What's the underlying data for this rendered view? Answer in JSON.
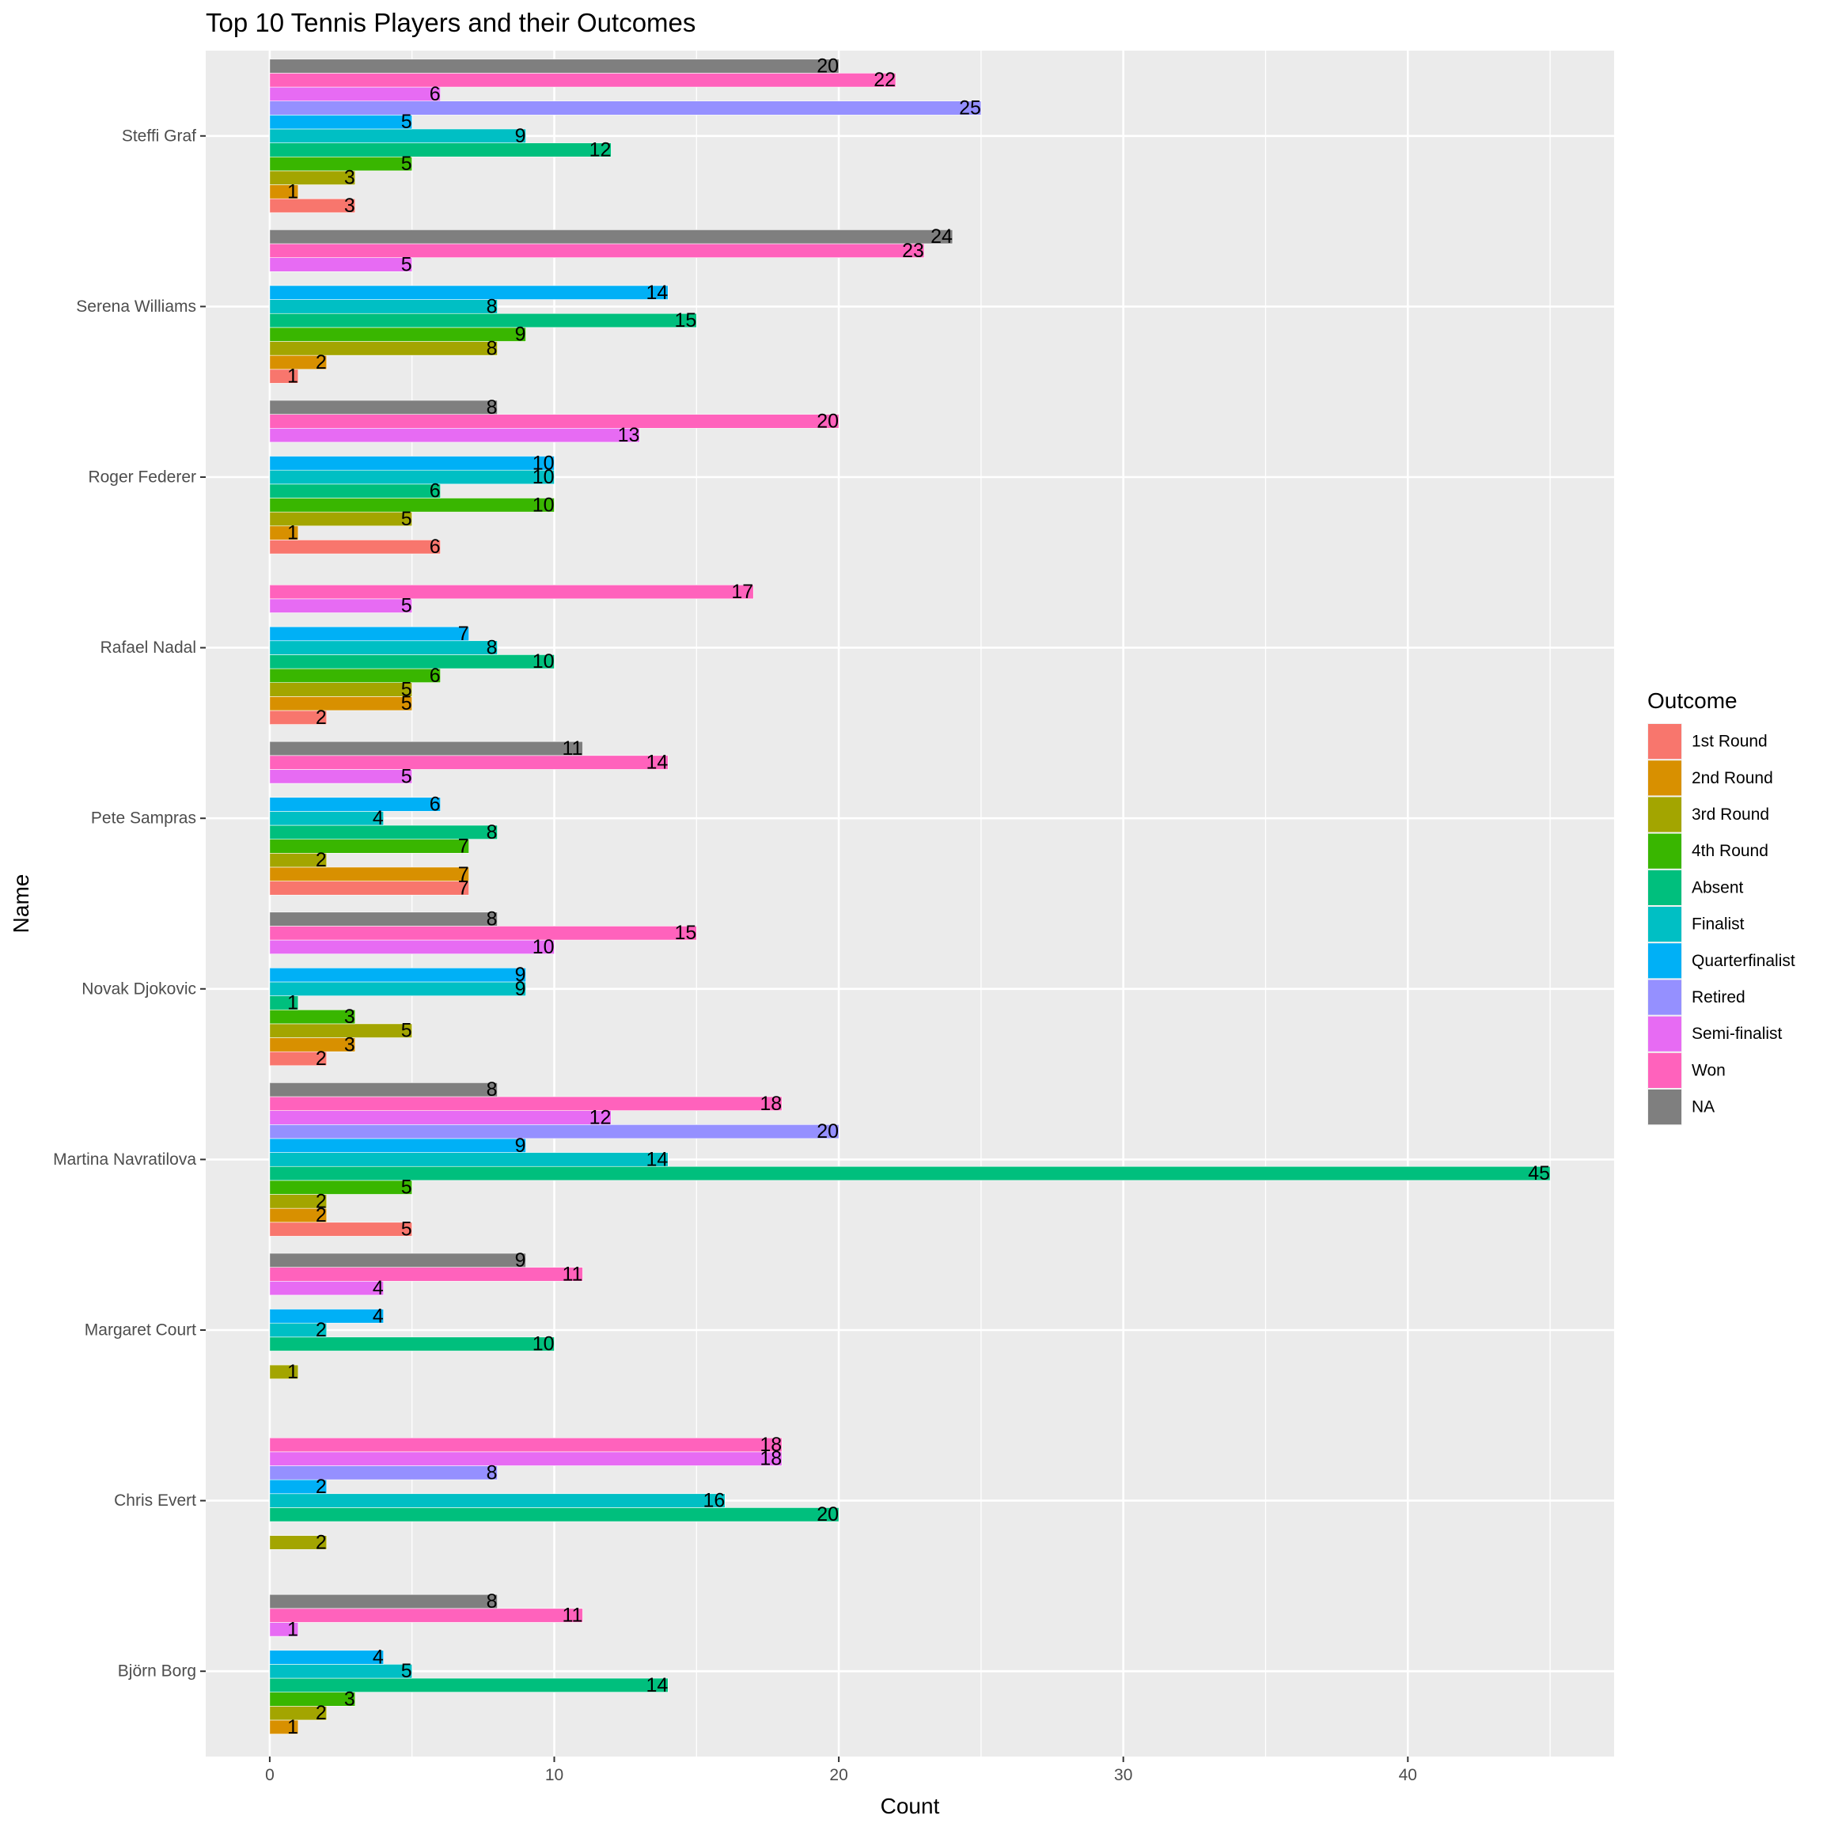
{
  "chart_data": {
    "type": "bar",
    "orientation": "horizontal",
    "title": "Top 10 Tennis Players and their Outcomes",
    "xlabel": "Count",
    "ylabel": "Name",
    "xlim": [
      -2.25,
      47.25
    ],
    "x_ticks": [
      0,
      10,
      20,
      30,
      40
    ],
    "x_tick_labels": [
      "0",
      "10",
      "20",
      "30",
      "40"
    ],
    "grid": true,
    "legend_title": "Outcome",
    "legend_position": "right",
    "categories": [
      "Steffi Graf",
      "Serena Williams",
      "Roger Federer",
      "Rafael Nadal",
      "Pete Sampras",
      "Novak Djokovic",
      "Martina Navratilova",
      "Margaret Court",
      "Chris Evert",
      "Björn Borg"
    ],
    "series": [
      {
        "name": "1st Round",
        "color": "#F8766D",
        "values": [
          3,
          1,
          6,
          2,
          7,
          2,
          5,
          null,
          null,
          null
        ]
      },
      {
        "name": "2nd Round",
        "color": "#D89000",
        "values": [
          1,
          2,
          1,
          5,
          7,
          3,
          2,
          null,
          null,
          1
        ]
      },
      {
        "name": "3rd Round",
        "color": "#A3A500",
        "values": [
          3,
          8,
          5,
          5,
          2,
          5,
          2,
          1,
          2,
          2
        ]
      },
      {
        "name": "4th Round",
        "color": "#39B600",
        "values": [
          5,
          9,
          10,
          6,
          7,
          3,
          5,
          null,
          null,
          3
        ]
      },
      {
        "name": "Absent",
        "color": "#00BF7D",
        "values": [
          12,
          15,
          6,
          10,
          8,
          1,
          45,
          10,
          20,
          14
        ]
      },
      {
        "name": "Finalist",
        "color": "#00BFC4",
        "values": [
          9,
          8,
          10,
          8,
          4,
          9,
          14,
          2,
          16,
          5
        ]
      },
      {
        "name": "Quarterfinalist",
        "color": "#00B0F6",
        "values": [
          5,
          14,
          10,
          7,
          6,
          9,
          9,
          4,
          2,
          4
        ]
      },
      {
        "name": "Retired",
        "color": "#9590FF",
        "values": [
          25,
          null,
          null,
          null,
          null,
          null,
          20,
          null,
          8,
          null
        ]
      },
      {
        "name": "Semi-finalist",
        "color": "#E76BF3",
        "values": [
          6,
          5,
          13,
          5,
          5,
          10,
          12,
          4,
          18,
          1
        ]
      },
      {
        "name": "Won",
        "color": "#FF62BC",
        "values": [
          22,
          23,
          20,
          17,
          14,
          15,
          18,
          11,
          18,
          11
        ]
      },
      {
        "name": "NA",
        "color": "#7F7F7F",
        "values": [
          20,
          24,
          8,
          null,
          11,
          8,
          8,
          9,
          null,
          8
        ]
      }
    ]
  }
}
